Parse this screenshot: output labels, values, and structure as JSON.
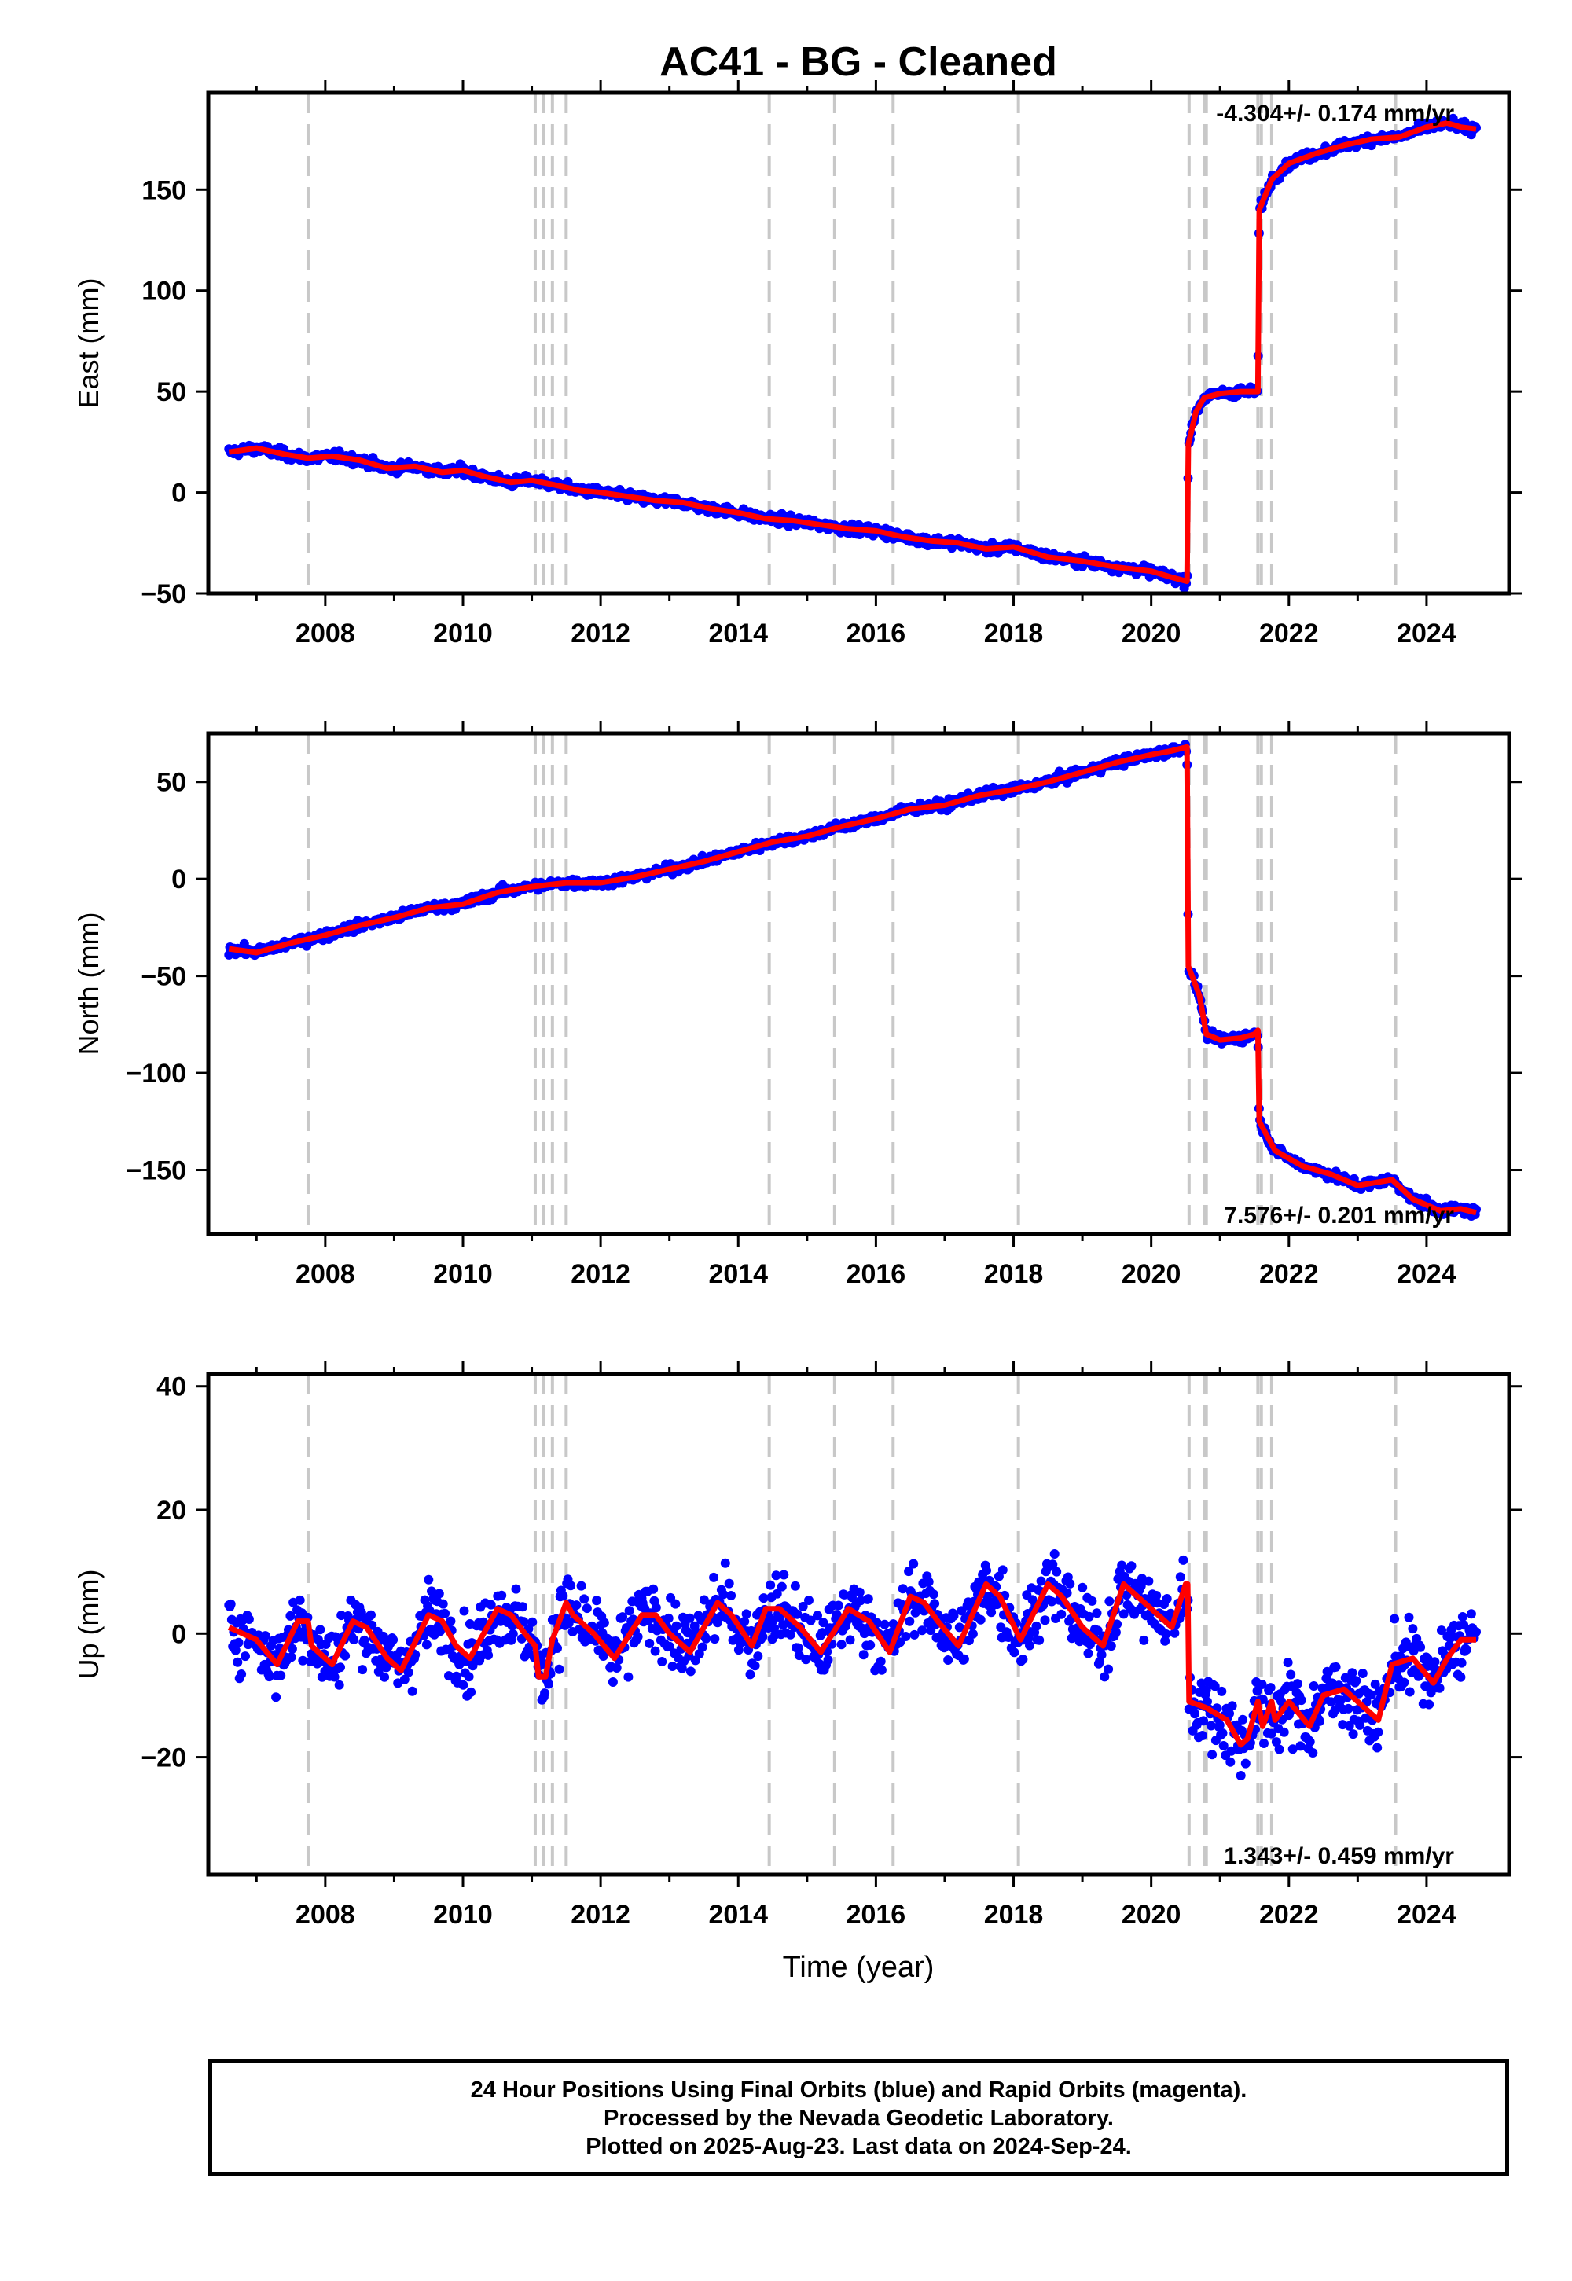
{
  "title": "AC41  - BG - Cleaned",
  "xlabel": "Time (year)",
  "footer": {
    "line1": "24 Hour Positions Using Final Orbits (blue) and Rapid Orbits (magenta).",
    "line2": "Processed by the Nevada Geodetic Laboratory.",
    "line3": "Plotted on 2025-Aug-23. Last data on 2024-Sep-24."
  },
  "colors": {
    "data": "#0000ff",
    "model": "#ff0000",
    "steps": "#c8c8c8",
    "axis": "#000000"
  },
  "chart_data": [
    {
      "type": "scatter",
      "panel": "east",
      "ylabel": "East (mm)",
      "xlim": [
        2006.3,
        2025.2
      ],
      "ylim": [
        -50,
        198
      ],
      "xticks": [
        2008,
        2010,
        2012,
        2014,
        2016,
        2018,
        2020,
        2022,
        2024
      ],
      "yticks": [
        -50,
        0,
        50,
        100,
        150
      ],
      "grid": false,
      "annotation": "-4.304+/- 0.174 mm/yr",
      "annotation_position": "top-right",
      "equipment_changes": [
        2007.75,
        2011.05,
        2011.17,
        2011.3,
        2011.5,
        2014.45,
        2015.4,
        2016.25,
        2018.07,
        2020.55,
        2020.77,
        2020.8,
        2021.55,
        2021.6,
        2021.75,
        2023.55
      ],
      "scatter_noise": 3,
      "series": [
        {
          "name": "model",
          "points": [
            [
              2006.6,
              20
            ],
            [
              2007.0,
              22
            ],
            [
              2007.4,
              19
            ],
            [
              2007.75,
              17
            ],
            [
              2008.1,
              18
            ],
            [
              2008.5,
              16
            ],
            [
              2008.9,
              12
            ],
            [
              2009.3,
              13
            ],
            [
              2009.7,
              10
            ],
            [
              2010.0,
              11
            ],
            [
              2010.3,
              8
            ],
            [
              2010.7,
              5
            ],
            [
              2011.0,
              6
            ],
            [
              2011.3,
              4
            ],
            [
              2011.7,
              1
            ],
            [
              2012.0,
              0
            ],
            [
              2012.4,
              -2
            ],
            [
              2012.8,
              -4
            ],
            [
              2013.2,
              -5
            ],
            [
              2013.6,
              -8
            ],
            [
              2014.0,
              -10
            ],
            [
              2014.4,
              -13
            ],
            [
              2014.8,
              -14
            ],
            [
              2015.2,
              -16
            ],
            [
              2015.6,
              -18
            ],
            [
              2016.0,
              -19
            ],
            [
              2016.4,
              -22
            ],
            [
              2016.8,
              -24
            ],
            [
              2017.2,
              -25
            ],
            [
              2017.6,
              -28
            ],
            [
              2018.0,
              -27
            ],
            [
              2018.5,
              -32
            ],
            [
              2019.0,
              -34
            ],
            [
              2019.5,
              -37
            ],
            [
              2020.0,
              -39
            ],
            [
              2020.3,
              -42
            ],
            [
              2020.52,
              -44
            ],
            [
              2020.54,
              24
            ],
            [
              2020.65,
              40
            ],
            [
              2020.77,
              47
            ],
            [
              2021.0,
              49
            ],
            [
              2021.3,
              50
            ],
            [
              2021.55,
              50
            ],
            [
              2021.57,
              140
            ],
            [
              2021.75,
              155
            ],
            [
              2022.0,
              163
            ],
            [
              2022.4,
              168
            ],
            [
              2022.8,
              172
            ],
            [
              2023.2,
              175
            ],
            [
              2023.6,
              176
            ],
            [
              2024.0,
              181
            ],
            [
              2024.3,
              183
            ],
            [
              2024.5,
              181
            ],
            [
              2024.72,
              180
            ]
          ]
        }
      ]
    },
    {
      "type": "scatter",
      "panel": "north",
      "ylabel": "North (mm)",
      "xlim": [
        2006.3,
        2025.2
      ],
      "ylim": [
        -183,
        75
      ],
      "xticks": [
        2008,
        2010,
        2012,
        2014,
        2016,
        2018,
        2020,
        2022,
        2024
      ],
      "yticks": [
        -150,
        -100,
        -50,
        0,
        50
      ],
      "grid": false,
      "annotation": "7.576+/- 0.201 mm/yr",
      "annotation_position": "bottom-right",
      "equipment_changes": [
        2007.75,
        2011.05,
        2011.17,
        2011.3,
        2011.5,
        2014.45,
        2015.4,
        2016.25,
        2018.07,
        2020.55,
        2020.77,
        2020.8,
        2021.55,
        2021.6,
        2021.75,
        2023.55
      ],
      "scatter_noise": 3,
      "series": [
        {
          "name": "model",
          "points": [
            [
              2006.6,
              -36
            ],
            [
              2007.0,
              -38
            ],
            [
              2007.5,
              -33
            ],
            [
              2008.0,
              -29
            ],
            [
              2008.5,
              -24
            ],
            [
              2009.0,
              -20
            ],
            [
              2009.5,
              -15
            ],
            [
              2010.0,
              -13
            ],
            [
              2010.5,
              -7
            ],
            [
              2011.0,
              -4
            ],
            [
              2011.5,
              -2
            ],
            [
              2012.0,
              -2
            ],
            [
              2012.5,
              1
            ],
            [
              2013.0,
              5
            ],
            [
              2013.5,
              9
            ],
            [
              2014.0,
              14
            ],
            [
              2014.5,
              19
            ],
            [
              2015.0,
              22
            ],
            [
              2015.5,
              27
            ],
            [
              2016.0,
              31
            ],
            [
              2016.5,
              36
            ],
            [
              2017.0,
              38
            ],
            [
              2017.5,
              43
            ],
            [
              2018.0,
              46
            ],
            [
              2018.5,
              50
            ],
            [
              2019.0,
              55
            ],
            [
              2019.5,
              60
            ],
            [
              2020.0,
              64
            ],
            [
              2020.3,
              66
            ],
            [
              2020.52,
              68
            ],
            [
              2020.54,
              -45
            ],
            [
              2020.7,
              -60
            ],
            [
              2020.8,
              -80
            ],
            [
              2021.0,
              -83
            ],
            [
              2021.3,
              -82
            ],
            [
              2021.5,
              -80
            ],
            [
              2021.55,
              -78
            ],
            [
              2021.57,
              -125
            ],
            [
              2021.8,
              -140
            ],
            [
              2022.2,
              -148
            ],
            [
              2022.6,
              -152
            ],
            [
              2023.0,
              -158
            ],
            [
              2023.5,
              -155
            ],
            [
              2023.8,
              -165
            ],
            [
              2024.2,
              -171
            ],
            [
              2024.5,
              -170
            ],
            [
              2024.72,
              -172
            ]
          ]
        }
      ]
    },
    {
      "type": "scatter",
      "panel": "up",
      "ylabel": "Up (mm)",
      "xlim": [
        2006.3,
        2025.2
      ],
      "ylim": [
        -39,
        42
      ],
      "xticks": [
        2008,
        2010,
        2012,
        2014,
        2016,
        2018,
        2020,
        2022,
        2024
      ],
      "yticks": [
        -20,
        0,
        20,
        40
      ],
      "grid": false,
      "annotation": "1.343+/- 0.459 mm/yr",
      "annotation_position": "bottom-right",
      "equipment_changes": [
        2007.75,
        2011.05,
        2011.17,
        2011.3,
        2011.5,
        2014.45,
        2015.4,
        2016.25,
        2018.07,
        2020.55,
        2020.77,
        2020.8,
        2021.55,
        2021.6,
        2021.75,
        2023.55
      ],
      "scatter_noise": 7,
      "series": [
        {
          "name": "model",
          "points": [
            [
              2006.6,
              1
            ],
            [
              2007.0,
              -1
            ],
            [
              2007.3,
              -5
            ],
            [
              2007.6,
              2
            ],
            [
              2007.75,
              2
            ],
            [
              2007.8,
              -2
            ],
            [
              2008.1,
              -5
            ],
            [
              2008.4,
              2
            ],
            [
              2008.6,
              1
            ],
            [
              2008.9,
              -4
            ],
            [
              2009.1,
              -6
            ],
            [
              2009.5,
              3
            ],
            [
              2009.7,
              2
            ],
            [
              2009.9,
              -2
            ],
            [
              2010.1,
              -4
            ],
            [
              2010.5,
              4
            ],
            [
              2010.7,
              3
            ],
            [
              2010.9,
              0
            ],
            [
              2011.05,
              -2
            ],
            [
              2011.1,
              -7
            ],
            [
              2011.2,
              -7
            ],
            [
              2011.3,
              -1
            ],
            [
              2011.5,
              5
            ],
            [
              2011.6,
              3
            ],
            [
              2011.9,
              0
            ],
            [
              2012.2,
              -4
            ],
            [
              2012.6,
              3
            ],
            [
              2012.8,
              3
            ],
            [
              2013.0,
              0
            ],
            [
              2013.3,
              -3
            ],
            [
              2013.7,
              5
            ],
            [
              2013.9,
              3
            ],
            [
              2014.2,
              -2
            ],
            [
              2014.4,
              4
            ],
            [
              2014.6,
              4
            ],
            [
              2014.9,
              1
            ],
            [
              2015.2,
              -3
            ],
            [
              2015.6,
              4
            ],
            [
              2015.9,
              2
            ],
            [
              2016.2,
              -3
            ],
            [
              2016.5,
              6
            ],
            [
              2016.7,
              5
            ],
            [
              2016.9,
              2
            ],
            [
              2017.2,
              -2
            ],
            [
              2017.6,
              8
            ],
            [
              2017.8,
              6
            ],
            [
              2018.1,
              -1
            ],
            [
              2018.5,
              8
            ],
            [
              2018.7,
              6
            ],
            [
              2019.0,
              1
            ],
            [
              2019.3,
              -2
            ],
            [
              2019.6,
              8
            ],
            [
              2019.8,
              6
            ],
            [
              2020.0,
              4
            ],
            [
              2020.3,
              1
            ],
            [
              2020.5,
              8
            ],
            [
              2020.53,
              8
            ],
            [
              2020.55,
              -11
            ],
            [
              2020.8,
              -12
            ],
            [
              2021.1,
              -14
            ],
            [
              2021.3,
              -18
            ],
            [
              2021.4,
              -17
            ],
            [
              2021.55,
              -11
            ],
            [
              2021.62,
              -15
            ],
            [
              2021.75,
              -11
            ],
            [
              2021.8,
              -14
            ],
            [
              2022.0,
              -11
            ],
            [
              2022.3,
              -15
            ],
            [
              2022.5,
              -10
            ],
            [
              2022.8,
              -9
            ],
            [
              2023.1,
              -12
            ],
            [
              2023.3,
              -14
            ],
            [
              2023.5,
              -5
            ],
            [
              2023.8,
              -4
            ],
            [
              2024.1,
              -8
            ],
            [
              2024.3,
              -4
            ],
            [
              2024.5,
              -1
            ],
            [
              2024.72,
              -1
            ]
          ]
        }
      ]
    }
  ]
}
